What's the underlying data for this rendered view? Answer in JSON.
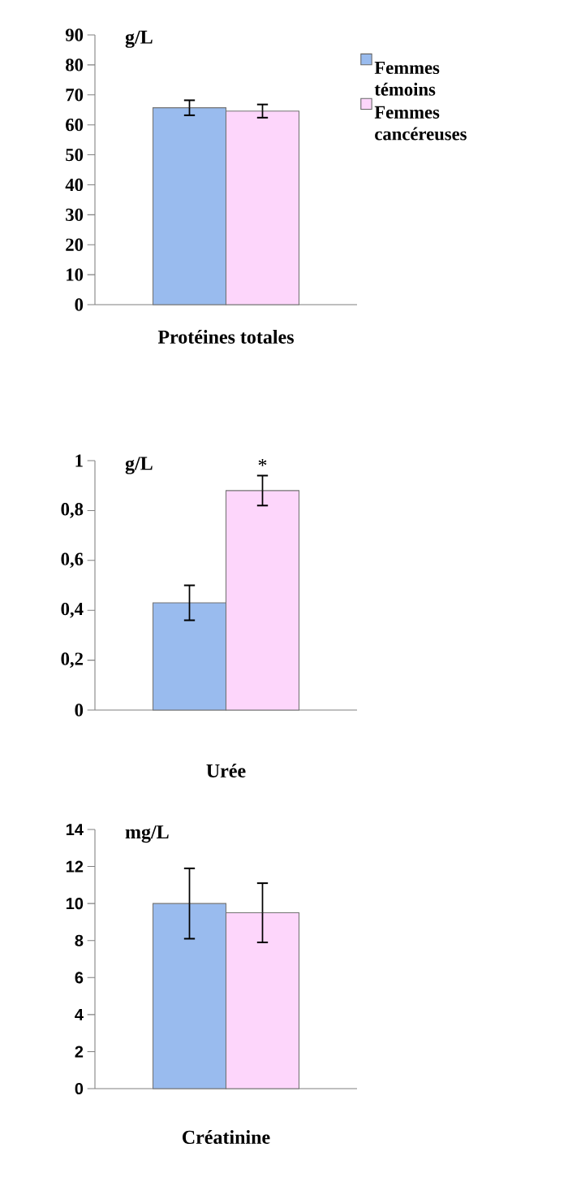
{
  "chart_data": [
    {
      "type": "bar",
      "ylabel": "g/L",
      "categories": [
        "Protéines totales"
      ],
      "ylim": [
        0,
        90
      ],
      "yticks": [
        0,
        10,
        20,
        30,
        40,
        50,
        60,
        70,
        80,
        90
      ],
      "legend": "top right",
      "series": [
        {
          "name": "Femmes témoins",
          "color": "#99bbee",
          "values": [
            65.7
          ],
          "errors": [
            2.5
          ]
        },
        {
          "name": "Femmes cancéreuses",
          "color": "#fdd6fb",
          "values": [
            64.6
          ],
          "errors": [
            2.2
          ]
        }
      ]
    },
    {
      "type": "bar",
      "ylabel": "g/L",
      "categories": [
        "Urée"
      ],
      "ylim": [
        0,
        1
      ],
      "yticks": [
        0,
        {
          "value": 0.2,
          "label": "0,2"
        },
        {
          "value": 0.4,
          "label": "0,4"
        },
        {
          "value": 0.6,
          "label": "0,6"
        },
        {
          "value": 0.8,
          "label": "0,8"
        },
        1
      ],
      "annotations": [
        "*"
      ],
      "series": [
        {
          "color": "#99bbee",
          "values": [
            0.43
          ],
          "errors": [
            0.07
          ]
        },
        {
          "color": "#fdd6fb",
          "values": [
            0.88
          ],
          "errors": [
            0.06
          ]
        }
      ]
    },
    {
      "type": "bar",
      "ylabel": "mg/L",
      "categories": [
        "Créatinine"
      ],
      "ylim": [
        0,
        14
      ],
      "yticks": [
        0,
        2,
        4,
        6,
        8,
        10,
        12,
        14
      ],
      "series": [
        {
          "color": "#99bbee",
          "values": [
            10.0
          ],
          "errors": [
            1.9
          ]
        },
        {
          "color": "#fdd6fb",
          "values": [
            9.5
          ],
          "errors": [
            1.6
          ]
        }
      ]
    }
  ]
}
